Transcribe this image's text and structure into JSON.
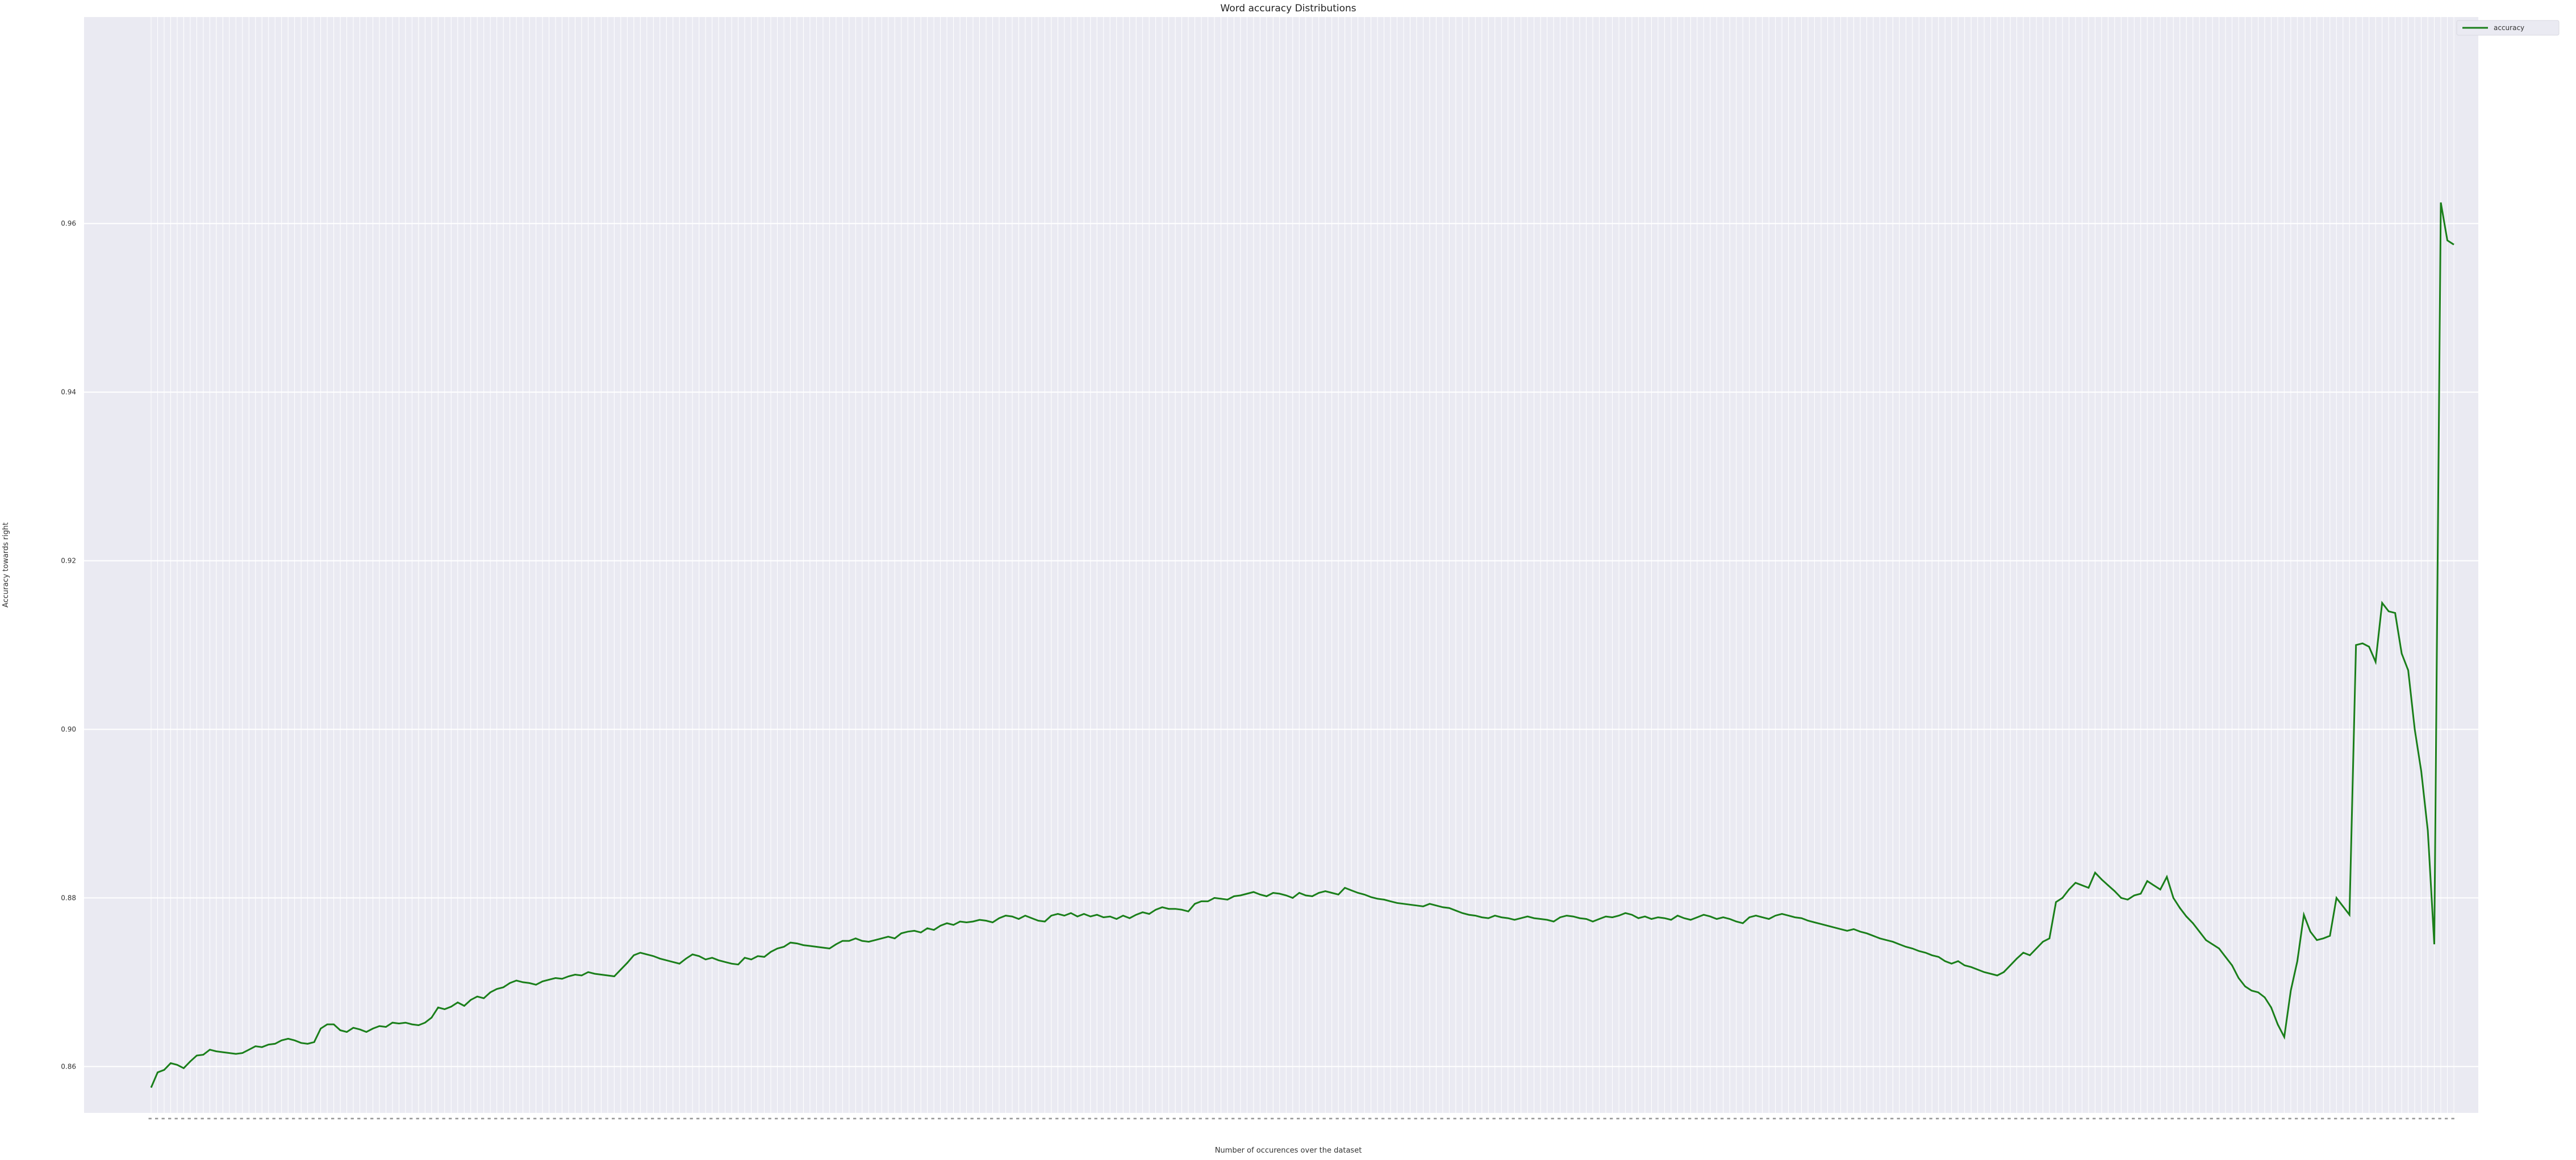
{
  "chart_data": {
    "type": "line",
    "title": "Word accuracy Distributions",
    "xlabel": "Number of occurences over the dataset",
    "ylabel": "Accuracy towards right",
    "ylim": [
      0.8545,
      0.9845
    ],
    "yticks": [
      0.86,
      0.88,
      0.9,
      0.92,
      0.94,
      0.96
    ],
    "grid": true,
    "legend_position": "top-right",
    "series": [
      {
        "name": "accuracy",
        "color": "#1a7f1a",
        "values": [
          0.8575,
          0.8593,
          0.8596,
          0.8604,
          0.8602,
          0.8598,
          0.8606,
          0.8613,
          0.8614,
          0.862,
          0.8618,
          0.8617,
          0.8616,
          0.8615,
          0.8616,
          0.862,
          0.8624,
          0.8623,
          0.8626,
          0.8627,
          0.8631,
          0.8633,
          0.8631,
          0.8628,
          0.8627,
          0.8629,
          0.8645,
          0.865,
          0.865,
          0.8643,
          0.8641,
          0.8646,
          0.8644,
          0.8641,
          0.8645,
          0.8648,
          0.8647,
          0.8652,
          0.8651,
          0.8652,
          0.865,
          0.8649,
          0.8652,
          0.8658,
          0.867,
          0.8668,
          0.8671,
          0.8676,
          0.8672,
          0.8679,
          0.8683,
          0.8681,
          0.8688,
          0.8692,
          0.8694,
          0.8699,
          0.8702,
          0.87,
          0.8699,
          0.8697,
          0.8701,
          0.8703,
          0.8705,
          0.8704,
          0.8707,
          0.8709,
          0.8708,
          0.8712,
          0.871,
          0.8709,
          0.8708,
          0.8707,
          0.8715,
          0.8723,
          0.8732,
          0.8735,
          0.8733,
          0.8731,
          0.8728,
          0.8726,
          0.8724,
          0.8722,
          0.8728,
          0.8733,
          0.8731,
          0.8727,
          0.8729,
          0.8726,
          0.8724,
          0.8722,
          0.8721,
          0.8729,
          0.8727,
          0.8731,
          0.873,
          0.8736,
          0.874,
          0.8742,
          0.8747,
          0.8746,
          0.8744,
          0.8743,
          0.8742,
          0.8741,
          0.874,
          0.8745,
          0.8749,
          0.8749,
          0.8752,
          0.8749,
          0.8748,
          0.875,
          0.8752,
          0.8754,
          0.8752,
          0.8758,
          0.876,
          0.8761,
          0.8759,
          0.8764,
          0.8762,
          0.8767,
          0.877,
          0.8768,
          0.8772,
          0.8771,
          0.8772,
          0.8774,
          0.8773,
          0.8771,
          0.8776,
          0.8779,
          0.8778,
          0.8775,
          0.8779,
          0.8776,
          0.8773,
          0.8772,
          0.8779,
          0.8781,
          0.8779,
          0.8782,
          0.8778,
          0.8781,
          0.8778,
          0.878,
          0.8777,
          0.8778,
          0.8775,
          0.8779,
          0.8776,
          0.878,
          0.8783,
          0.8781,
          0.8786,
          0.8789,
          0.8787,
          0.8787,
          0.8786,
          0.8784,
          0.8793,
          0.8796,
          0.8796,
          0.88,
          0.8799,
          0.8798,
          0.8802,
          0.8803,
          0.8805,
          0.8807,
          0.8804,
          0.8802,
          0.8806,
          0.8805,
          0.8803,
          0.88,
          0.8806,
          0.8803,
          0.8802,
          0.8806,
          0.8808,
          0.8806,
          0.8804,
          0.8812,
          0.8809,
          0.8806,
          0.8804,
          0.8801,
          0.8799,
          0.8798,
          0.8796,
          0.8794,
          0.8793,
          0.8792,
          0.8791,
          0.879,
          0.8793,
          0.8791,
          0.8789,
          0.8788,
          0.8785,
          0.8782,
          0.878,
          0.8779,
          0.8777,
          0.8776,
          0.8779,
          0.8777,
          0.8776,
          0.8774,
          0.8776,
          0.8778,
          0.8776,
          0.8775,
          0.8774,
          0.8772,
          0.8777,
          0.8779,
          0.8778,
          0.8776,
          0.8775,
          0.8772,
          0.8775,
          0.8778,
          0.8777,
          0.8779,
          0.8782,
          0.878,
          0.8776,
          0.8778,
          0.8775,
          0.8777,
          0.8776,
          0.8774,
          0.8779,
          0.8776,
          0.8774,
          0.8777,
          0.878,
          0.8778,
          0.8775,
          0.8777,
          0.8775,
          0.8772,
          0.877,
          0.8777,
          0.8779,
          0.8777,
          0.8775,
          0.8779,
          0.8781,
          0.8779,
          0.8777,
          0.8776,
          0.8773,
          0.8771,
          0.8769,
          0.8767,
          0.8765,
          0.8763,
          0.8761,
          0.8763,
          0.876,
          0.8758,
          0.8755,
          0.8752,
          0.875,
          0.8748,
          0.8745,
          0.8742,
          0.874,
          0.8737,
          0.8735,
          0.8732,
          0.873,
          0.8725,
          0.8722,
          0.8725,
          0.872,
          0.8718,
          0.8715,
          0.8712,
          0.871,
          0.8708,
          0.8712,
          0.872,
          0.8728,
          0.8735,
          0.8732,
          0.874,
          0.8748,
          0.8752,
          0.8795,
          0.88,
          0.881,
          0.8818,
          0.8815,
          0.8812,
          0.883,
          0.8822,
          0.8815,
          0.8808,
          0.88,
          0.8798,
          0.8803,
          0.8805,
          0.882,
          0.8815,
          0.881,
          0.8825,
          0.88,
          0.8788,
          0.8778,
          0.877,
          0.876,
          0.875,
          0.8745,
          0.874,
          0.873,
          0.872,
          0.8705,
          0.8695,
          0.869,
          0.8688,
          0.8682,
          0.867,
          0.865,
          0.8635,
          0.869,
          0.8725,
          0.878,
          0.876,
          0.875,
          0.8752,
          0.8755,
          0.88,
          0.879,
          0.878,
          0.91,
          0.9102,
          0.9098,
          0.908,
          0.915,
          0.914,
          0.9138,
          0.909,
          0.907,
          0.9,
          0.895,
          0.888,
          0.8745,
          0.9625,
          0.958,
          0.9575
        ]
      }
    ]
  }
}
